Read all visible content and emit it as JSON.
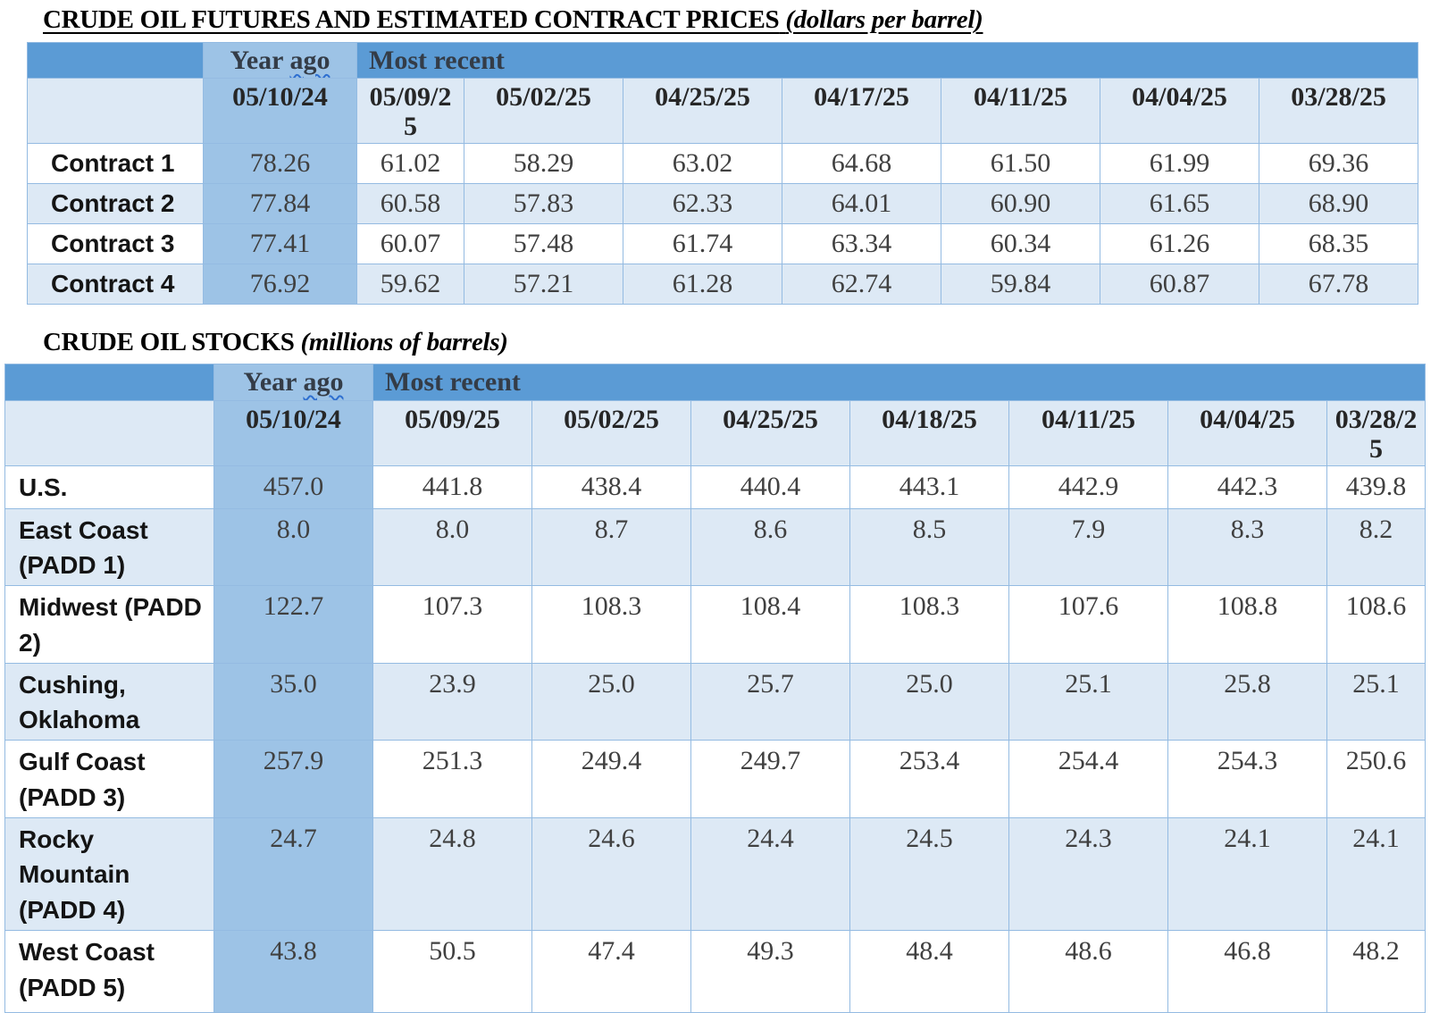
{
  "colors": {
    "header_band_blue": "#5b9bd5",
    "year_ago_column_blue": "#9dc3e6",
    "row_band_blue": "#dde9f5",
    "grid_border_blue": "#94bbe2",
    "spellcheck_underline_blue": "#2e6fd0",
    "title_text": "#000000",
    "number_text": "#404040"
  },
  "tables": [
    {
      "id": "crude-oil-futures",
      "title": {
        "main": "CRUDE OIL FUTURES AND ESTIMATED CONTRACT PRICES",
        "unit": "(dollars per barrel)"
      },
      "year_ago_label": "Year ago",
      "most_recent_label": "Most recent",
      "year_ago_date": "05/10/24",
      "recent_dates": [
        "05/09/25",
        "05/02/25",
        "04/25/25",
        "04/17/25",
        "04/11/25",
        "04/04/25",
        "03/28/25"
      ],
      "rows": [
        {
          "label": "Contract 1",
          "year_ago": "78.26",
          "values": [
            "61.02",
            "58.29",
            "63.02",
            "64.68",
            "61.50",
            "61.99",
            "69.36"
          ]
        },
        {
          "label": "Contract 2",
          "year_ago": "77.84",
          "values": [
            "60.58",
            "57.83",
            "62.33",
            "64.01",
            "60.90",
            "61.65",
            "68.90"
          ]
        },
        {
          "label": "Contract 3",
          "year_ago": "77.41",
          "values": [
            "60.07",
            "57.48",
            "61.74",
            "63.34",
            "60.34",
            "61.26",
            "68.35"
          ]
        },
        {
          "label": "Contract 4",
          "year_ago": "76.92",
          "values": [
            "59.62",
            "57.21",
            "61.28",
            "62.74",
            "59.84",
            "60.87",
            "67.78"
          ]
        }
      ]
    },
    {
      "id": "crude-oil-stocks",
      "title": {
        "main": "CRUDE OIL STOCKS",
        "unit": "(millions of barrels)"
      },
      "year_ago_label": "Year ago",
      "most_recent_label": "Most recent",
      "year_ago_date": "05/10/24",
      "recent_dates": [
        "05/09/25",
        "05/02/25",
        "04/25/25",
        "04/18/25",
        "04/11/25",
        "04/04/25",
        "03/28/25"
      ],
      "rows": [
        {
          "label": "U.S.",
          "year_ago": "457.0",
          "values": [
            "441.8",
            "438.4",
            "440.4",
            "443.1",
            "442.9",
            "442.3",
            "439.8"
          ]
        },
        {
          "label": "East Coast (PADD 1)",
          "year_ago": "8.0",
          "values": [
            "8.0",
            "8.7",
            "8.6",
            "8.5",
            "7.9",
            "8.3",
            "8.2"
          ]
        },
        {
          "label": "Midwest (PADD 2)",
          "year_ago": "122.7",
          "values": [
            "107.3",
            "108.3",
            "108.4",
            "108.3",
            "107.6",
            "108.8",
            "108.6"
          ]
        },
        {
          "label": "Cushing, Oklahoma",
          "year_ago": "35.0",
          "values": [
            "23.9",
            "25.0",
            "25.7",
            "25.0",
            "25.1",
            "25.8",
            "25.1"
          ]
        },
        {
          "label": "Gulf Coast (PADD 3)",
          "year_ago": "257.9",
          "values": [
            "251.3",
            "249.4",
            "249.7",
            "253.4",
            "254.4",
            "254.3",
            "250.6"
          ]
        },
        {
          "label": "Rocky Mountain (PADD 4)",
          "year_ago": "24.7",
          "values": [
            "24.8",
            "24.6",
            "24.4",
            "24.5",
            "24.3",
            "24.1",
            "24.1"
          ]
        },
        {
          "label": "West Coast (PADD 5)",
          "year_ago": "43.8",
          "values": [
            "50.5",
            "47.4",
            "49.3",
            "48.4",
            "48.6",
            "46.8",
            "48.2"
          ]
        }
      ]
    }
  ]
}
